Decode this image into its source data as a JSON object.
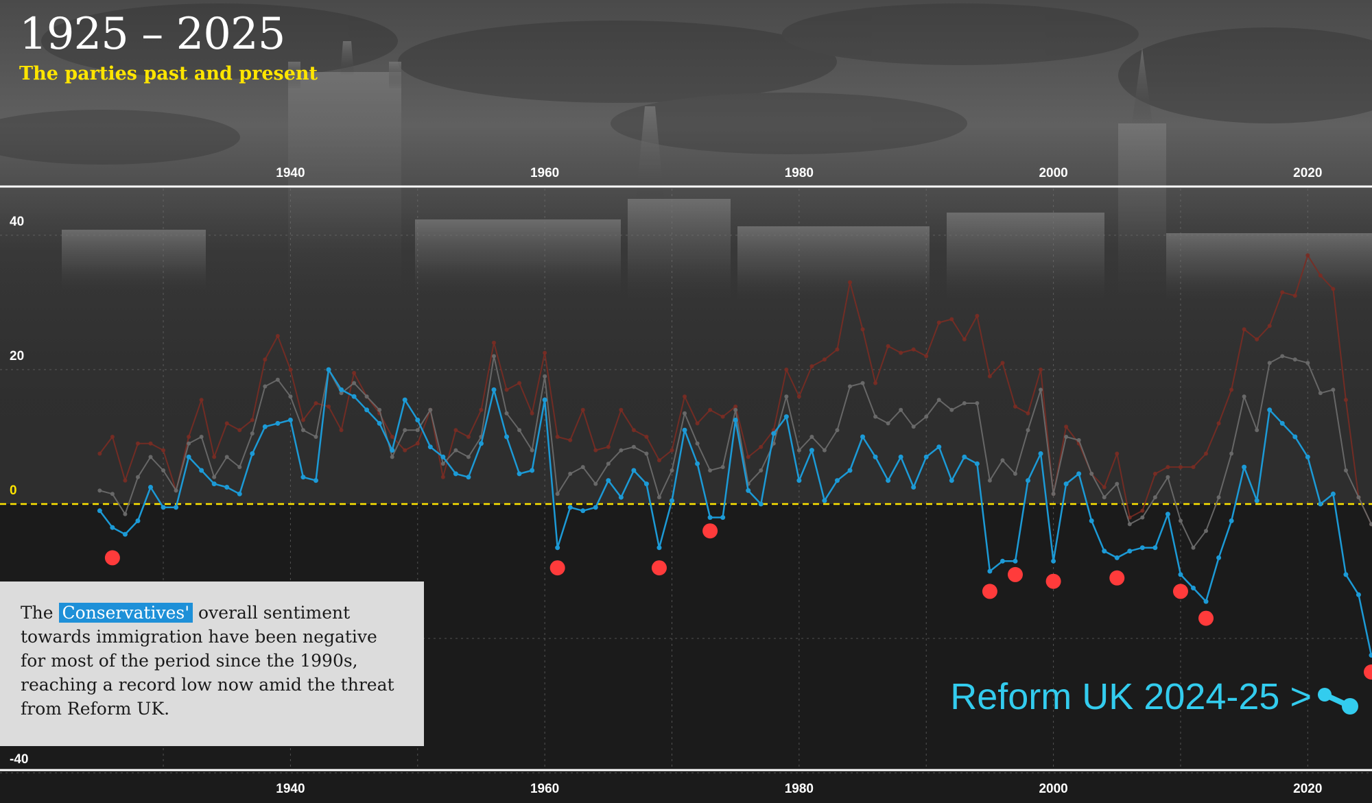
{
  "title": "1925 – 2025",
  "subtitle": "The parties past and present",
  "annotation": {
    "before": "The ",
    "party": "Conservatives'",
    "after": " overall sentiment towards immigration have been negative for most of the period since the 1990s, reaching a record low now amid the threat from Reform UK."
  },
  "reform_label": "Reform UK 2024-25 >",
  "colors": {
    "conservative": "#1c9ad6",
    "grey_series": "#6a6a6a",
    "red_series": "#7a2c24",
    "negative_marker": "#ff3b3b",
    "zero_line": "#ffe500",
    "reform": "#33ccee",
    "annotation_bg": "#dcdcdc"
  },
  "chart_data": {
    "type": "line",
    "xlim": [
      1915,
      2025
    ],
    "ylim": [
      -40,
      40
    ],
    "x_ticks": [
      1940,
      1960,
      1980,
      2000,
      2020
    ],
    "y_ticks": [
      40,
      20,
      0,
      -40
    ],
    "zero_line": 0,
    "grid": true,
    "series": [
      {
        "key": "conservative",
        "x": [
          1925,
          1926,
          1927,
          1928,
          1929,
          1930,
          1931,
          1932,
          1933,
          1934,
          1935,
          1936,
          1937,
          1938,
          1939,
          1940,
          1941,
          1942,
          1943,
          1944,
          1945,
          1946,
          1947,
          1948,
          1949,
          1950,
          1951,
          1952,
          1953,
          1954,
          1955,
          1956,
          1957,
          1958,
          1959,
          1960,
          1961,
          1962,
          1963,
          1964,
          1965,
          1966,
          1967,
          1968,
          1969,
          1970,
          1971,
          1972,
          1973,
          1974,
          1975,
          1976,
          1977,
          1978,
          1979,
          1980,
          1981,
          1982,
          1983,
          1984,
          1985,
          1986,
          1987,
          1988,
          1989,
          1990,
          1991,
          1992,
          1993,
          1994,
          1995,
          1996,
          1997,
          1998,
          1999,
          2000,
          2001,
          2002,
          2003,
          2004,
          2005,
          2006,
          2007,
          2008,
          2009,
          2010,
          2011,
          2012,
          2013,
          2014,
          2015,
          2016,
          2017,
          2018,
          2019,
          2020,
          2021,
          2022,
          2023,
          2024,
          2025
        ],
        "y": [
          -1,
          -3.5,
          -4.5,
          -2.5,
          2.5,
          -0.5,
          -0.5,
          7,
          5,
          3,
          2.5,
          1.5,
          7.5,
          11.5,
          12,
          12.5,
          4,
          3.5,
          20,
          17,
          16,
          14,
          12,
          8,
          15.5,
          12.5,
          8.5,
          7,
          4.5,
          4,
          9,
          17,
          10,
          4.5,
          5,
          15.5,
          -6.5,
          -0.5,
          -1,
          -0.5,
          3.5,
          1,
          5,
          3,
          -6.5,
          0.5,
          11,
          6,
          -2,
          -2,
          12.5,
          2,
          0,
          10.5,
          13,
          3.5,
          8,
          0.5,
          3.5,
          5,
          10,
          7,
          3.5,
          7,
          2.5,
          7,
          8.5,
          3.5,
          7,
          6,
          -10,
          -8.5,
          -8.5,
          3.5,
          7.5,
          -8.5,
          3,
          4.5,
          -2.5,
          -7,
          -8,
          -7,
          -6.5,
          -6.5,
          -1.5,
          -10.5,
          -12.5,
          -14.5,
          -8,
          -2.5,
          5.5,
          0.5,
          14,
          12,
          10,
          7,
          0,
          1.5,
          -10.5,
          -13.5,
          -22.5
        ]
      },
      {
        "key": "grey",
        "x": [
          1925,
          1926,
          1927,
          1928,
          1929,
          1930,
          1931,
          1932,
          1933,
          1934,
          1935,
          1936,
          1937,
          1938,
          1939,
          1940,
          1941,
          1942,
          1943,
          1944,
          1945,
          1946,
          1947,
          1948,
          1949,
          1950,
          1951,
          1952,
          1953,
          1954,
          1955,
          1956,
          1957,
          1958,
          1959,
          1960,
          1961,
          1962,
          1963,
          1964,
          1965,
          1966,
          1967,
          1968,
          1969,
          1970,
          1971,
          1972,
          1973,
          1974,
          1975,
          1976,
          1977,
          1978,
          1979,
          1980,
          1981,
          1982,
          1983,
          1984,
          1985,
          1986,
          1987,
          1988,
          1989,
          1990,
          1991,
          1992,
          1993,
          1994,
          1995,
          1996,
          1997,
          1998,
          1999,
          2000,
          2001,
          2002,
          2003,
          2004,
          2005,
          2006,
          2007,
          2008,
          2009,
          2010,
          2011,
          2012,
          2013,
          2014,
          2015,
          2016,
          2017,
          2018,
          2019,
          2020,
          2021,
          2022,
          2023,
          2024,
          2025
        ],
        "y": [
          2,
          1.5,
          -1.5,
          4,
          7,
          5,
          2,
          9,
          10,
          4,
          7,
          5.5,
          10.5,
          17.5,
          18.5,
          16,
          11,
          10,
          20,
          16.5,
          18,
          16,
          14,
          7,
          11,
          11,
          14,
          6,
          8,
          7,
          10,
          22,
          13.5,
          11,
          8,
          19,
          1.5,
          4.5,
          5.5,
          3,
          6,
          8,
          8.5,
          7.5,
          1,
          5,
          13.5,
          9,
          5,
          5.5,
          14,
          3,
          5,
          9,
          16,
          8,
          10,
          8,
          11,
          17.5,
          18,
          13,
          12,
          14,
          11.5,
          13,
          15.5,
          14,
          15,
          15,
          3.5,
          6.5,
          4.5,
          11,
          17,
          1.5,
          10,
          9.5,
          4.5,
          1,
          3,
          -3,
          -2,
          1,
          4,
          -2.5,
          -6.5,
          -4,
          1,
          7.5,
          16,
          11,
          21,
          22,
          21.5,
          21,
          16.5,
          17,
          5,
          1,
          -3
        ]
      },
      {
        "key": "red",
        "x": [
          1925,
          1926,
          1927,
          1928,
          1929,
          1930,
          1931,
          1932,
          1933,
          1934,
          1935,
          1936,
          1937,
          1938,
          1939,
          1940,
          1941,
          1942,
          1943,
          1944,
          1945,
          1946,
          1947,
          1948,
          1949,
          1950,
          1951,
          1952,
          1953,
          1954,
          1955,
          1956,
          1957,
          1958,
          1959,
          1960,
          1961,
          1962,
          1963,
          1964,
          1965,
          1966,
          1967,
          1968,
          1969,
          1970,
          1971,
          1972,
          1973,
          1974,
          1975,
          1976,
          1977,
          1978,
          1979,
          1980,
          1981,
          1982,
          1983,
          1984,
          1985,
          1986,
          1987,
          1988,
          1989,
          1990,
          1991,
          1992,
          1993,
          1994,
          1995,
          1996,
          1997,
          1998,
          1999,
          2000,
          2001,
          2002,
          2003,
          2004,
          2005,
          2006,
          2007,
          2008,
          2009,
          2010,
          2011,
          2012,
          2013,
          2014,
          2015,
          2016,
          2017,
          2018,
          2019,
          2020,
          2021,
          2022,
          2023,
          2024,
          2025
        ],
        "y": [
          7.5,
          10,
          3.5,
          9,
          9,
          8,
          2,
          10,
          15.5,
          7,
          12,
          11,
          12.5,
          21.5,
          25,
          20,
          12.5,
          15,
          14.5,
          11,
          19.5,
          16,
          13.5,
          10,
          8,
          9,
          14,
          4,
          11,
          10,
          14,
          24,
          17,
          18,
          13.5,
          22.5,
          10,
          9.5,
          14,
          8,
          8.5,
          14,
          11,
          10,
          6.5,
          8,
          16,
          12,
          14,
          13,
          14.5,
          7,
          8.5,
          11,
          20,
          16,
          20.5,
          21.5,
          23,
          33,
          26,
          18,
          23.5,
          22.5,
          23,
          22,
          27,
          27.5,
          24.5,
          28,
          19,
          21,
          14.5,
          13.5,
          20,
          1.5,
          11.5,
          9,
          4.5,
          2.5,
          7.5,
          -2,
          -1,
          4.5,
          5.5,
          5.5,
          5.5,
          7.5,
          12,
          17,
          26,
          24.5,
          26.5,
          31.5,
          31,
          37,
          34,
          32,
          15.5,
          1,
          -3
        ]
      }
    ],
    "negative_markers": {
      "x": [
        1926,
        1961,
        1969,
        1973,
        1995,
        1997,
        2000,
        2005,
        2010,
        2012,
        2025
      ],
      "y": [
        -8,
        -9.5,
        -9.5,
        -4,
        -13,
        -10.5,
        -11.5,
        -11,
        -13,
        -17,
        -25
      ]
    }
  }
}
